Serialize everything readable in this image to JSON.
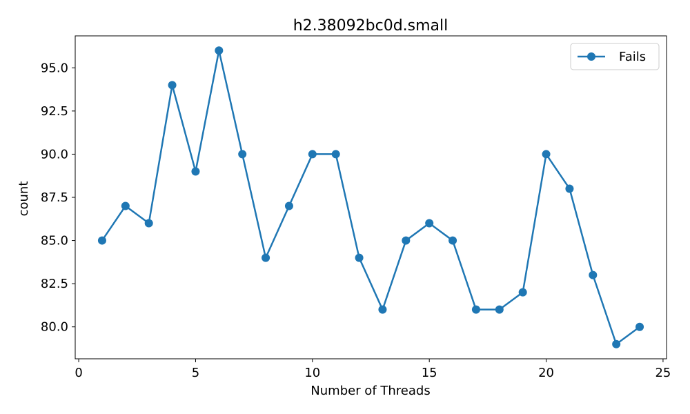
{
  "chart_data": {
    "type": "line",
    "title": "h2.38092bc0d.small",
    "xlabel": "Number of Threads",
    "ylabel": "count",
    "xlim": [
      -0.15,
      25.15
    ],
    "ylim": [
      78.15,
      96.85
    ],
    "xticks": [
      0,
      5,
      10,
      15,
      20,
      25
    ],
    "xtick_labels": [
      "0",
      "5",
      "10",
      "15",
      "20",
      "25"
    ],
    "yticks": [
      80.0,
      82.5,
      85.0,
      87.5,
      90.0,
      92.5,
      95.0
    ],
    "ytick_labels": [
      "80.0",
      "82.5",
      "85.0",
      "87.5",
      "90.0",
      "92.5",
      "95.0"
    ],
    "grid": false,
    "legend_position": "top-right",
    "series": [
      {
        "name": "Fails",
        "color": "#1f77b4",
        "marker": "circle",
        "x": [
          1,
          2,
          3,
          4,
          5,
          6,
          7,
          8,
          9,
          10,
          11,
          12,
          13,
          14,
          15,
          16,
          17,
          18,
          19,
          20,
          21,
          22,
          23,
          24
        ],
        "y": [
          85,
          87,
          86,
          94,
          89,
          96,
          90,
          84,
          87,
          90,
          90,
          84,
          81,
          85,
          86,
          85,
          81,
          81,
          82,
          90,
          88,
          83,
          79,
          80
        ]
      }
    ]
  }
}
